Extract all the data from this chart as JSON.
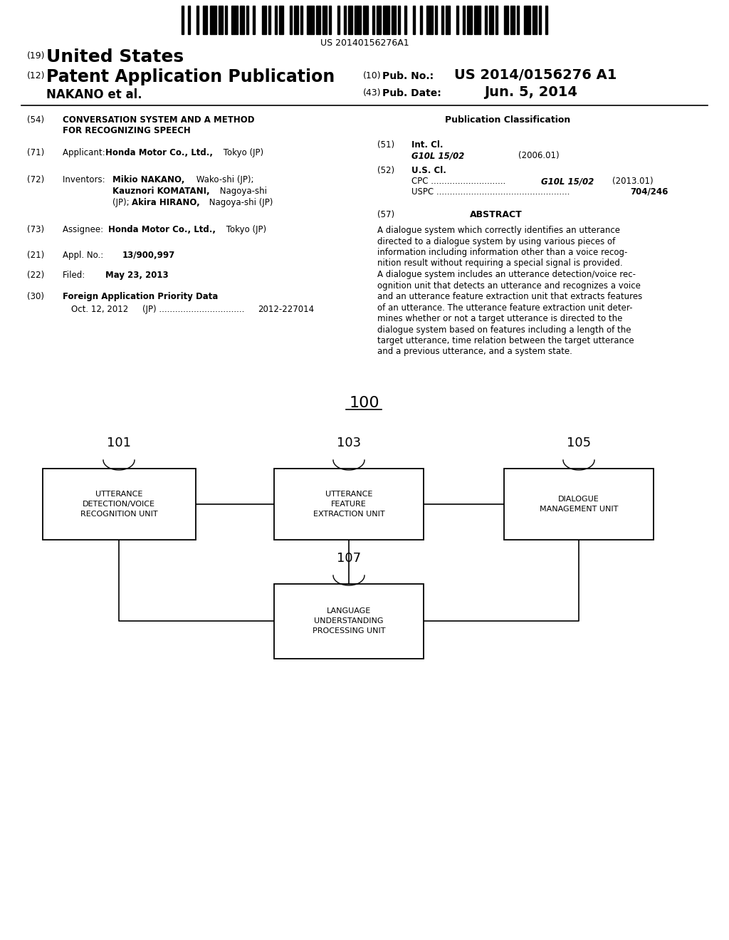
{
  "background_color": "#ffffff",
  "barcode_text": "US 20140156276A1",
  "title_19": "(19)",
  "title_united_states": "United States",
  "title_12": "(12)",
  "title_patent": "Patent Application Publication",
  "title_10_label": "(10)",
  "title_10_text": "Pub. No.:",
  "title_pub_no": "US 2014/0156276 A1",
  "title_nakano": "NAKANO et al.",
  "title_43_label": "(43)",
  "title_43_text": "Pub. Date:",
  "title_date": "Jun. 5, 2014",
  "field_54_label": "(54)",
  "pub_class_title": "Publication Classification",
  "field_51_label": "(51)",
  "field_51_code": "G10L 15/02",
  "field_51_year": "(2006.01)",
  "field_52_label": "(52)",
  "field_71_label": "(71)",
  "field_72_label": "(72)",
  "field_73_label": "(73)",
  "field_21_label": "(21)",
  "field_22_label": "(22)",
  "field_30_label": "(30)",
  "abstract_label": "(57)",
  "diagram_label": "100",
  "box1_label": "101",
  "box1_text": "UTTERANCE\nDETECTION/VOICE\nRECOGNITION UNIT",
  "box2_label": "103",
  "box2_text": "UTTERANCE\nFEATURE\nEXTRACTION UNIT",
  "box3_label": "105",
  "box3_text": "DIALOGUE\nMANAGEMENT UNIT",
  "box4_label": "107",
  "box4_text": "LANGUAGE\nUNDERSTANDING\nPROCESSING UNIT"
}
